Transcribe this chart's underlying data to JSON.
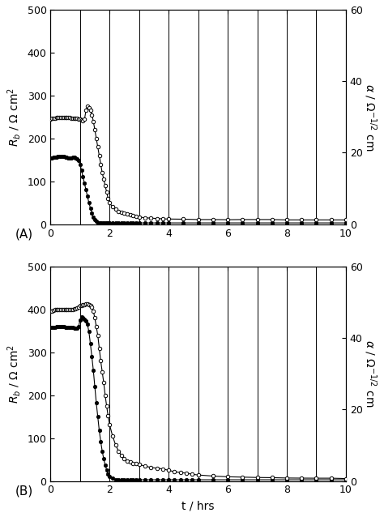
{
  "panel_A": {
    "Rb_filled": {
      "t": [
        0.0,
        0.05,
        0.1,
        0.15,
        0.2,
        0.25,
        0.3,
        0.35,
        0.4,
        0.45,
        0.5,
        0.55,
        0.6,
        0.65,
        0.7,
        0.75,
        0.8,
        0.85,
        0.9,
        0.95,
        1.0,
        1.05,
        1.1,
        1.15,
        1.2,
        1.25,
        1.3,
        1.35,
        1.4,
        1.45,
        1.5,
        1.55,
        1.6,
        1.65,
        1.7,
        1.75,
        1.8,
        1.85,
        1.9,
        1.95,
        2.0,
        2.1,
        2.2,
        2.3,
        2.4,
        2.5,
        2.6,
        2.7,
        2.8,
        2.9,
        3.0,
        3.2,
        3.4,
        3.6,
        3.8,
        4.0,
        4.5,
        5.0,
        5.5,
        6.0,
        6.5,
        7.0,
        7.5,
        8.0,
        8.5,
        9.0,
        9.5,
        10.0
      ],
      "Rb": [
        155,
        155,
        156,
        157,
        157,
        158,
        158,
        158,
        158,
        158,
        157,
        156,
        155,
        155,
        155,
        156,
        156,
        155,
        152,
        148,
        140,
        125,
        110,
        95,
        80,
        65,
        50,
        38,
        26,
        16,
        10,
        6,
        4,
        3,
        3,
        3,
        3,
        3,
        3,
        3,
        3,
        3,
        3,
        3,
        3,
        3,
        3,
        3,
        3,
        3,
        3,
        3,
        3,
        3,
        3,
        3,
        3,
        3,
        3,
        3,
        3,
        3,
        3,
        3,
        3,
        3,
        3,
        3
      ]
    },
    "alpha_open": {
      "t": [
        0.0,
        0.05,
        0.1,
        0.15,
        0.2,
        0.25,
        0.3,
        0.35,
        0.4,
        0.45,
        0.5,
        0.55,
        0.6,
        0.65,
        0.7,
        0.75,
        0.8,
        0.85,
        0.9,
        0.95,
        1.0,
        1.05,
        1.1,
        1.15,
        1.2,
        1.25,
        1.3,
        1.35,
        1.4,
        1.45,
        1.5,
        1.55,
        1.6,
        1.65,
        1.7,
        1.75,
        1.8,
        1.85,
        1.9,
        1.95,
        2.0,
        2.1,
        2.2,
        2.3,
        2.4,
        2.5,
        2.6,
        2.7,
        2.8,
        2.9,
        3.0,
        3.2,
        3.4,
        3.6,
        3.8,
        4.0,
        4.5,
        5.0,
        5.5,
        6.0,
        6.5,
        7.0,
        7.5,
        8.0,
        8.5,
        9.0,
        9.5,
        10.0
      ],
      "alpha": [
        29.5,
        29.6,
        29.7,
        29.7,
        29.8,
        29.8,
        29.8,
        29.8,
        29.8,
        29.8,
        29.8,
        29.8,
        29.8,
        29.8,
        29.7,
        29.7,
        29.7,
        29.7,
        29.7,
        29.5,
        29.3,
        29.1,
        29.0,
        29.3,
        31.8,
        33.0,
        32.5,
        31.8,
        30.6,
        28.8,
        26.4,
        24.0,
        21.6,
        19.2,
        16.8,
        14.4,
        12.6,
        10.8,
        9.0,
        7.2,
        6.0,
        4.8,
        4.2,
        3.6,
        3.4,
        3.0,
        2.8,
        2.6,
        2.4,
        2.2,
        2.0,
        1.8,
        1.7,
        1.6,
        1.5,
        1.45,
        1.4,
        1.3,
        1.3,
        1.25,
        1.3,
        1.3,
        1.3,
        1.2,
        1.2,
        1.2,
        1.2,
        1.2
      ]
    },
    "vlines": [
      1.0,
      2.0,
      3.0,
      4.0,
      5.0,
      6.0,
      7.0,
      8.0,
      9.0,
      10.0
    ]
  },
  "panel_B": {
    "Rb_filled": {
      "t": [
        0.0,
        0.05,
        0.1,
        0.15,
        0.2,
        0.25,
        0.3,
        0.35,
        0.4,
        0.45,
        0.5,
        0.55,
        0.6,
        0.65,
        0.7,
        0.75,
        0.8,
        0.85,
        0.9,
        0.95,
        1.0,
        1.05,
        1.1,
        1.15,
        1.2,
        1.25,
        1.3,
        1.35,
        1.4,
        1.45,
        1.5,
        1.55,
        1.6,
        1.65,
        1.7,
        1.75,
        1.8,
        1.85,
        1.9,
        1.95,
        2.0,
        2.1,
        2.2,
        2.3,
        2.4,
        2.5,
        2.6,
        2.7,
        2.8,
        2.9,
        3.0,
        3.2,
        3.4,
        3.6,
        3.8,
        4.0,
        4.2,
        4.4,
        4.6,
        4.8,
        5.0,
        5.5,
        6.0,
        6.5,
        7.0,
        7.5,
        8.0,
        8.5,
        9.0,
        9.5,
        10.0
      ],
      "Rb": [
        358,
        358,
        359,
        359,
        360,
        360,
        360,
        360,
        360,
        360,
        359,
        359,
        358,
        358,
        358,
        358,
        357,
        357,
        357,
        360,
        375,
        382,
        380,
        378,
        373,
        365,
        348,
        320,
        290,
        258,
        220,
        182,
        150,
        118,
        92,
        70,
        52,
        38,
        26,
        16,
        10,
        6,
        4,
        3,
        3,
        3,
        3,
        3,
        3,
        3,
        3,
        3,
        3,
        3,
        3,
        3,
        3,
        3,
        3,
        3,
        3,
        3,
        3,
        3,
        3,
        3,
        3,
        3,
        3,
        3,
        3
      ]
    },
    "alpha_open": {
      "t": [
        0.0,
        0.05,
        0.1,
        0.15,
        0.2,
        0.25,
        0.3,
        0.35,
        0.4,
        0.45,
        0.5,
        0.55,
        0.6,
        0.65,
        0.7,
        0.75,
        0.8,
        0.85,
        0.9,
        0.95,
        1.0,
        1.05,
        1.1,
        1.15,
        1.2,
        1.25,
        1.3,
        1.35,
        1.4,
        1.45,
        1.5,
        1.55,
        1.6,
        1.65,
        1.7,
        1.75,
        1.8,
        1.85,
        1.9,
        1.95,
        2.0,
        2.1,
        2.2,
        2.3,
        2.4,
        2.5,
        2.6,
        2.7,
        2.8,
        2.9,
        3.0,
        3.2,
        3.4,
        3.6,
        3.8,
        4.0,
        4.2,
        4.4,
        4.6,
        4.8,
        5.0,
        5.5,
        6.0,
        6.5,
        7.0,
        7.5,
        8.0,
        8.5,
        9.0,
        9.5,
        10.0
      ],
      "alpha": [
        47.5,
        47.6,
        47.8,
        47.9,
        48.0,
        48.0,
        48.0,
        48.0,
        48.0,
        48.0,
        48.0,
        48.0,
        48.0,
        48.0,
        48.0,
        48.0,
        48.1,
        48.2,
        48.5,
        48.7,
        49.0,
        49.2,
        49.3,
        49.4,
        49.5,
        49.5,
        49.4,
        49.2,
        48.6,
        47.5,
        45.6,
        43.2,
        40.8,
        37.2,
        33.6,
        30.6,
        27.6,
        24.0,
        21.0,
        18.2,
        15.8,
        12.6,
        10.2,
        8.4,
        7.2,
        6.2,
        5.6,
        5.3,
        5.0,
        4.8,
        4.6,
        4.2,
        3.8,
        3.6,
        3.4,
        3.0,
        2.6,
        2.4,
        2.2,
        1.9,
        1.7,
        1.4,
        1.2,
        1.1,
        1.0,
        0.95,
        0.85,
        0.82,
        0.8,
        0.8,
        0.7
      ]
    },
    "vlines": [
      1.0,
      2.0,
      3.0,
      4.0,
      5.0,
      6.0,
      7.0,
      8.0,
      9.0,
      10.0
    ]
  },
  "left_ylim": [
    0,
    500
  ],
  "right_ylim": [
    0,
    60
  ],
  "xlim": [
    0,
    10
  ],
  "xticks": [
    0,
    2,
    4,
    6,
    8,
    10
  ],
  "left_yticks_A": [
    0,
    100,
    200,
    300,
    400,
    500
  ],
  "left_yticks_B": [
    0,
    100,
    200,
    300,
    400,
    500
  ],
  "right_yticks": [
    0,
    20,
    40,
    60
  ],
  "xlabel": "t / hrs",
  "panel_A_label": "(A)",
  "panel_B_label": "(B)",
  "line_color": "black",
  "bg_color": "white",
  "vline_color": "black",
  "vline_lw": 0.7,
  "marker_size": 3.2,
  "line_width": 0.8,
  "tick_fontsize": 9,
  "label_fontsize": 10
}
